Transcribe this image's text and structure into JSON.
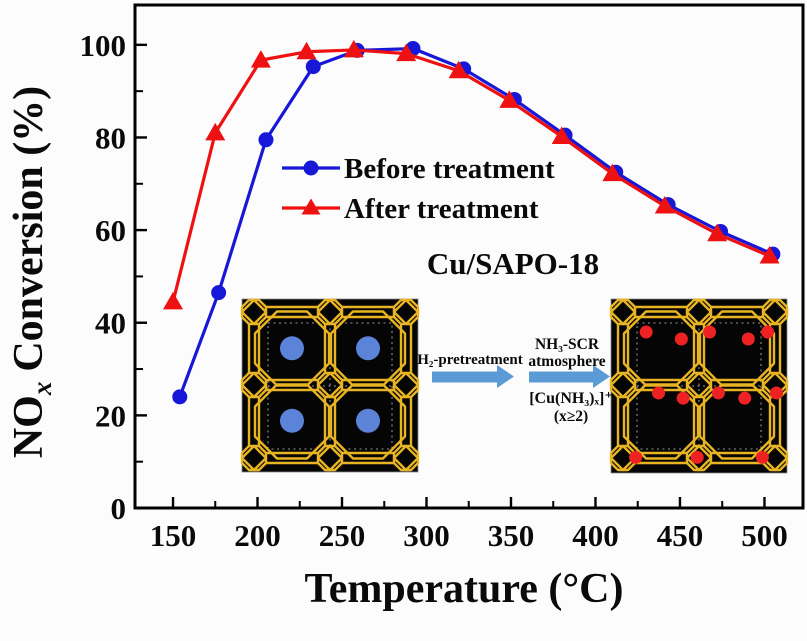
{
  "chart_data": {
    "type": "line",
    "title": "",
    "xlabel": "Temperature (°C)",
    "ylabel": "NOx Conversion (%)",
    "ylabel_parts": {
      "prefix": "NO",
      "sub": "x",
      "suffix": "Conversion (%)"
    },
    "xlim": [
      127.5,
      522.8
    ],
    "ylim": [
      0,
      108.6
    ],
    "grid": false,
    "legend_position": "upper-middle-left",
    "x_major_ticks": [
      150,
      200,
      250,
      300,
      350,
      400,
      450,
      500
    ],
    "x_minor_ticks": [
      175,
      225,
      275,
      325,
      375,
      425,
      475
    ],
    "y_major_ticks": [
      0,
      20,
      40,
      60,
      80,
      100
    ],
    "y_minor_ticks": [
      10,
      30,
      50,
      70,
      90
    ],
    "series": [
      {
        "name": "Before treatment",
        "color": "#1717d8",
        "marker": "circle",
        "x": [
          154,
          177,
          205,
          233,
          259,
          292,
          322,
          352,
          382,
          412,
          443,
          474,
          505
        ],
        "y": [
          24,
          46.5,
          79.5,
          95.3,
          98.8,
          99.2,
          94.8,
          88.2,
          80.5,
          72.5,
          65.5,
          59.7,
          54.8
        ]
      },
      {
        "name": "After treatment",
        "color": "#ee1111",
        "marker": "triangle",
        "x": [
          150,
          175,
          202,
          229,
          257,
          288,
          319,
          349,
          380,
          410,
          441,
          472,
          503
        ],
        "y": [
          44.5,
          81,
          96.7,
          98.5,
          98.9,
          98.1,
          94.4,
          88,
          80.2,
          72.2,
          65.2,
          59.2,
          54.4
        ]
      }
    ],
    "annotation": "Cu/SAPO-18"
  },
  "inset": {
    "framework_color": "#e8b422",
    "structure_background": "#050505",
    "left_ion_color": "#5b84d8",
    "right_ion_color": "#ee2222",
    "arrow_color": "#5b9bd5",
    "arrow1_label": "H₂-pretreatment",
    "arrow2_label_line1": "NH₃-SCR",
    "arrow2_label_line2": "atmosphere",
    "product_line1": "[Cu(NH₃)ₓ]⁺",
    "product_line2": "(x≥2)",
    "left_ions": [
      [
        0.284,
        0.285
      ],
      [
        0.716,
        0.285
      ],
      [
        0.284,
        0.704
      ],
      [
        0.716,
        0.704
      ]
    ],
    "right_ions": [
      [
        0.2,
        0.19
      ],
      [
        0.4,
        0.23
      ],
      [
        0.56,
        0.19
      ],
      [
        0.78,
        0.23
      ],
      [
        0.89,
        0.19
      ],
      [
        0.27,
        0.54
      ],
      [
        0.41,
        0.57
      ],
      [
        0.61,
        0.54
      ],
      [
        0.76,
        0.57
      ],
      [
        0.94,
        0.54
      ],
      [
        0.14,
        0.91
      ],
      [
        0.49,
        0.91
      ],
      [
        0.86,
        0.91
      ]
    ]
  }
}
